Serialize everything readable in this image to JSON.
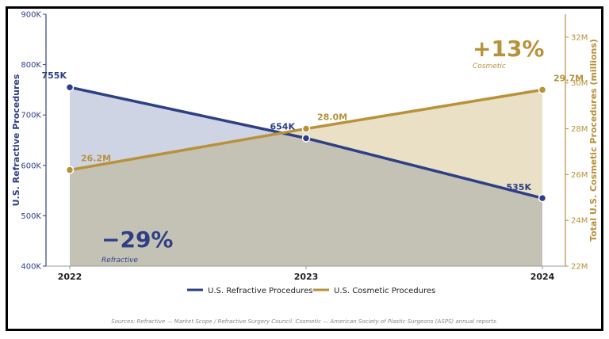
{
  "chart_data": {
    "type": "line",
    "categories": [
      "2022",
      "2023",
      "2024"
    ],
    "series": [
      {
        "name": "U.S. Refractive Procedures",
        "axis": "left",
        "values": [
          755,
          654,
          535
        ],
        "labels": [
          "755K",
          "654K",
          "535K"
        ],
        "color": "#2e3f86",
        "fill": "#cfd4e5"
      },
      {
        "name": "U.S. Cosmetic Procedures",
        "axis": "right",
        "values": [
          26.2,
          28.0,
          29.7
        ],
        "labels": [
          "26.2M",
          "28.0M",
          "29.7M"
        ],
        "color": "#b8913a",
        "fill": "#e9e0c6"
      }
    ],
    "left_axis": {
      "label": "U.S. Refractive Procedures",
      "min": 400,
      "max": 900,
      "ticks": [
        400,
        500,
        600,
        700,
        800,
        900
      ],
      "tick_labels": [
        "400K",
        "500K",
        "600K",
        "700K",
        "800K",
        "900K"
      ],
      "color": "#2e3f86"
    },
    "right_axis": {
      "label": "Total U.S. Cosmetic Procedures (millions)",
      "min": 22,
      "max": 33,
      "ticks": [
        22,
        24,
        26,
        28,
        30,
        32
      ],
      "tick_labels": [
        "22M",
        "24M",
        "26M",
        "28M",
        "30M",
        "32M"
      ],
      "color": "#b8913a"
    },
    "overlap_fill": "#c4c2b5",
    "annotations": {
      "refractive_change": "−29%",
      "refractive_caption": "Refractive",
      "cosmetic_change": "+13%",
      "cosmetic_caption": "Cosmetic"
    },
    "legend": {
      "placement": "bottom-center",
      "items": [
        "U.S. Refractive Procedures",
        "U.S. Cosmetic Procedures"
      ]
    },
    "grid": false
  },
  "source_note": "Sources: Refractive — Market Scope / Refractive Surgery Council.   Cosmetic — American Society of Plastic Surgeons (ASPS) annual reports."
}
